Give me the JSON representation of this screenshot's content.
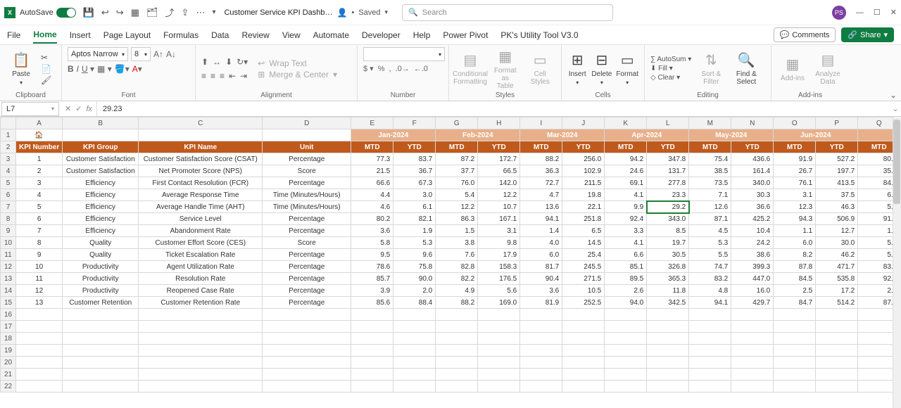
{
  "titlebar": {
    "autosave_label": "AutoSave",
    "doc_title": "Customer Service KPI Dashb…",
    "saved_label": "Saved",
    "search_placeholder": "Search",
    "avatar_initials": "PS"
  },
  "tabs": {
    "items": [
      "File",
      "Home",
      "Insert",
      "Page Layout",
      "Formulas",
      "Data",
      "Review",
      "View",
      "Automate",
      "Developer",
      "Help",
      "Power Pivot",
      "PK's Utility Tool V3.0"
    ],
    "active": "Home",
    "comments": "Comments",
    "share": "Share"
  },
  "ribbon": {
    "clipboard": {
      "paste": "Paste",
      "label": "Clipboard"
    },
    "font": {
      "name": "Aptos Narrow",
      "size": "8",
      "label": "Font"
    },
    "alignment": {
      "wrap": "Wrap Text",
      "merge": "Merge & Center",
      "label": "Alignment"
    },
    "number": {
      "label": "Number"
    },
    "styles": {
      "cond": "Conditional\nFormatting",
      "fmt": "Format as\nTable",
      "cell": "Cell\nStyles",
      "label": "Styles"
    },
    "cells": {
      "insert": "Insert",
      "delete": "Delete",
      "format": "Format",
      "label": "Cells"
    },
    "editing": {
      "autosum": "AutoSum",
      "fill": "Fill",
      "clear": "Clear",
      "sort": "Sort &\nFilter",
      "find": "Find &\nSelect",
      "label": "Editing"
    },
    "addins": {
      "addins": "Add-ins",
      "analyze": "Analyze\nData",
      "label": "Add-ins"
    }
  },
  "formula_bar": {
    "cell_ref": "L7",
    "value": "29.23"
  },
  "columns": [
    "A",
    "B",
    "C",
    "D",
    "E",
    "F",
    "G",
    "H",
    "I",
    "J",
    "K",
    "L",
    "M",
    "N",
    "O",
    "P",
    "Q"
  ],
  "months": [
    "Jan-2024",
    "Feb-2024",
    "Mar-2024",
    "Apr-2024",
    "May-2024",
    "Jun-2024"
  ],
  "headers": {
    "kpi_num": "KPI Number",
    "kpi_group": "KPI Group",
    "kpi_name": "KPI Name",
    "unit": "Unit",
    "mtd": "MTD",
    "ytd": "YTD"
  },
  "rows": [
    {
      "n": "1",
      "g": "Customer Satisfaction",
      "name": "Customer Satisfaction Score (CSAT)",
      "unit": "Percentage",
      "v": [
        "77.3",
        "83.7",
        "87.2",
        "172.7",
        "88.2",
        "256.0",
        "94.2",
        "347.8",
        "75.4",
        "436.6",
        "91.9",
        "527.2",
        "80.4"
      ]
    },
    {
      "n": "2",
      "g": "Customer Satisfaction",
      "name": "Net Promoter Score (NPS)",
      "unit": "Score",
      "v": [
        "21.5",
        "36.7",
        "37.7",
        "66.5",
        "36.3",
        "102.9",
        "24.6",
        "131.7",
        "38.5",
        "161.4",
        "26.7",
        "197.7",
        "35.0"
      ]
    },
    {
      "n": "3",
      "g": "Efficiency",
      "name": "First Contact Resolution (FCR)",
      "unit": "Percentage",
      "v": [
        "66.6",
        "67.3",
        "76.0",
        "142.0",
        "72.7",
        "211.5",
        "69.1",
        "277.8",
        "73.5",
        "340.0",
        "76.1",
        "413.5",
        "84.9"
      ]
    },
    {
      "n": "4",
      "g": "Efficiency",
      "name": "Average Response Time",
      "unit": "Time (Minutes/Hours)",
      "v": [
        "4.4",
        "3.0",
        "5.4",
        "12.2",
        "4.7",
        "19.8",
        "4.1",
        "23.3",
        "7.1",
        "30.3",
        "3.1",
        "37.5",
        "6.2"
      ]
    },
    {
      "n": "5",
      "g": "Efficiency",
      "name": "Average Handle Time (AHT)",
      "unit": "Time (Minutes/Hours)",
      "v": [
        "4.6",
        "6.1",
        "12.2",
        "10.7",
        "13.6",
        "22.1",
        "9.9",
        "29.2",
        "12.6",
        "36.6",
        "12.3",
        "46.3",
        "5.3"
      ]
    },
    {
      "n": "6",
      "g": "Efficiency",
      "name": "Service Level",
      "unit": "Percentage",
      "v": [
        "80.2",
        "82.1",
        "86.3",
        "167.1",
        "94.1",
        "251.8",
        "92.4",
        "343.0",
        "87.1",
        "425.2",
        "94.3",
        "506.9",
        "91.9"
      ]
    },
    {
      "n": "7",
      "g": "Efficiency",
      "name": "Abandonment Rate",
      "unit": "Percentage",
      "v": [
        "3.6",
        "1.9",
        "1.5",
        "3.1",
        "1.4",
        "6.5",
        "3.3",
        "8.5",
        "4.5",
        "10.4",
        "1.1",
        "12.7",
        "1.7"
      ]
    },
    {
      "n": "8",
      "g": "Quality",
      "name": "Customer Effort Score (CES)",
      "unit": "Score",
      "v": [
        "5.8",
        "5.3",
        "3.8",
        "9.8",
        "4.0",
        "14.5",
        "4.1",
        "19.7",
        "5.3",
        "24.2",
        "6.0",
        "30.0",
        "5.8"
      ]
    },
    {
      "n": "9",
      "g": "Quality",
      "name": "Ticket Escalation Rate",
      "unit": "Percentage",
      "v": [
        "9.5",
        "9.6",
        "7.6",
        "17.9",
        "6.0",
        "25.4",
        "6.6",
        "30.5",
        "5.5",
        "38.6",
        "8.2",
        "46.2",
        "5.5"
      ]
    },
    {
      "n": "10",
      "g": "Productivity",
      "name": "Agent Utilization Rate",
      "unit": "Percentage",
      "v": [
        "78.6",
        "75.8",
        "82.8",
        "158.3",
        "81.7",
        "245.5",
        "85.1",
        "326.8",
        "74.7",
        "399.3",
        "87.8",
        "471.7",
        "83.1"
      ]
    },
    {
      "n": "11",
      "g": "Productivity",
      "name": "Resolution Rate",
      "unit": "Percentage",
      "v": [
        "85.7",
        "90.0",
        "82.2",
        "176.5",
        "90.4",
        "271.5",
        "89.5",
        "365.3",
        "83.2",
        "447.0",
        "84.5",
        "535.8",
        "92.1"
      ]
    },
    {
      "n": "12",
      "g": "Productivity",
      "name": "Reopened Case Rate",
      "unit": "Percentage",
      "v": [
        "3.9",
        "2.0",
        "4.9",
        "5.6",
        "3.6",
        "10.5",
        "2.6",
        "11.8",
        "4.8",
        "16.0",
        "2.5",
        "17.2",
        "2.7"
      ]
    },
    {
      "n": "13",
      "g": "Customer Retention",
      "name": "Customer Retention Rate",
      "unit": "Percentage",
      "v": [
        "85.6",
        "88.4",
        "88.2",
        "169.0",
        "81.9",
        "252.5",
        "94.0",
        "342.5",
        "94.1",
        "429.7",
        "84.7",
        "514.2",
        "87.0"
      ]
    }
  ],
  "selected": {
    "row_index": 4,
    "col_index": 7
  },
  "colors": {
    "hdr_dark": "#c05a1c",
    "hdr_light": "#d86f2c",
    "month_bg": "#e8b08a",
    "sel": "#1a7f37",
    "grid": "#d8d8d8",
    "colhdr": "#f2f2f2"
  }
}
